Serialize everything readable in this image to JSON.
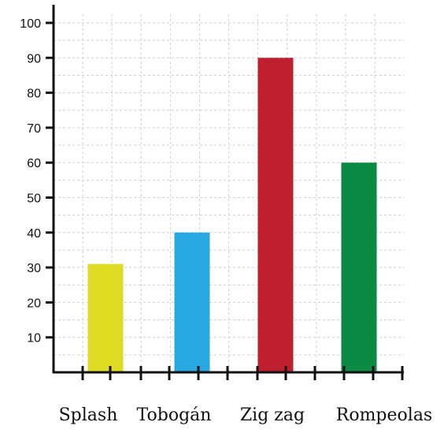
{
  "chart_data": {
    "type": "bar",
    "categories": [
      "Splash",
      "Tobogán",
      "Zig zag",
      "Rompeolas"
    ],
    "values": [
      31,
      40,
      90,
      60
    ],
    "colors": [
      "#dfdb22",
      "#27a8e0",
      "#be1e2d",
      "#0b8a43"
    ],
    "title": "",
    "xlabel": "",
    "ylabel": "",
    "ylim": [
      0,
      100
    ],
    "yticks": [
      10,
      20,
      30,
      40,
      50,
      60,
      70,
      80,
      90,
      100
    ],
    "grid": true
  }
}
